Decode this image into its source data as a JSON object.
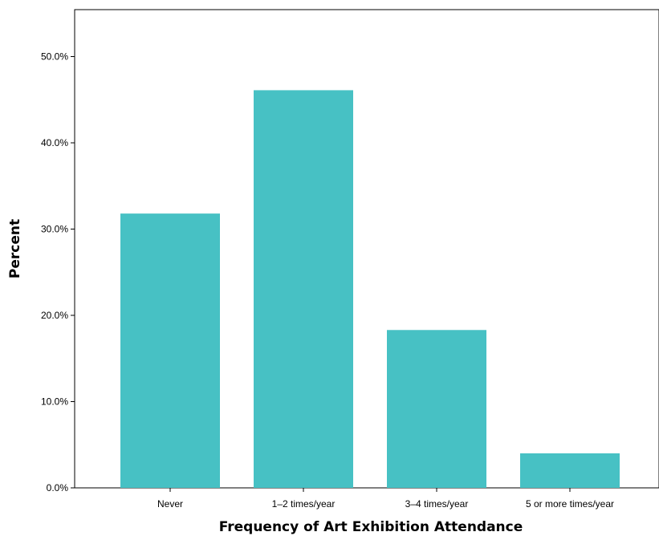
{
  "chart_data": {
    "type": "bar",
    "title": "",
    "xlabel": "Frequency of Art Exhibition Attendance",
    "ylabel": "Percent",
    "categories": [
      "Never",
      "1–2 times/year",
      "3–4 times/year",
      "5 or more times/year"
    ],
    "values": [
      31.8,
      46.1,
      18.3,
      4.0
    ],
    "ylim": [
      0,
      50
    ],
    "yticks": [
      0,
      10,
      20,
      30,
      40,
      50
    ],
    "ytick_labels": [
      "0.0%",
      "10.0%",
      "20.0%",
      "30.0%",
      "40.0%",
      "50.0%"
    ],
    "grid": false,
    "legend": "none",
    "bar_color": "#47c1c4",
    "axis_color": "#000000"
  }
}
